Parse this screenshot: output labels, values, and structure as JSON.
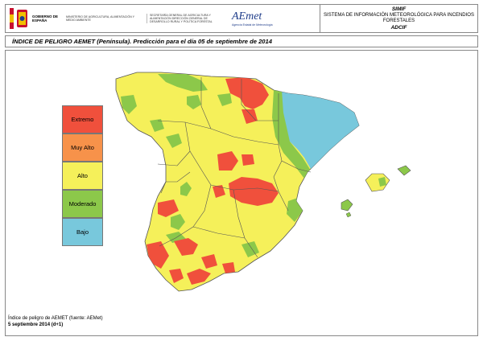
{
  "header": {
    "gobierno": "GOBIERNO DE ESPAÑA",
    "ministerio": "MINISTERIO DE AGRICULTURA, ALIMENTACIÓN Y MEDIO AMBIENTE",
    "secretaria": "SECRETARÍA GENERAL DE AGRICULTURA Y ALIMENTACIÓN DIRECCIÓN GENERAL DE DESARROLLO RURAL Y POLÍTICA FORESTAL",
    "aemet_logo": "AEmet",
    "aemet_sub": "Agencia Estatal de Meteorología",
    "system_code": "SIMIF",
    "system_name_1": "SISTEMA DE INFORMACIÓN METEOROLÓGICA PARA INCENDIOS",
    "system_name_2": "FORESTALES",
    "system_sub": "ADCIF"
  },
  "title": "ÍNDICE DE PELIGRO AEMET (Península). Predicción para el día 05 de septiembre de 2014",
  "legend": [
    {
      "label": "Extremo",
      "color": "#f0503c"
    },
    {
      "label": "Muy Alto",
      "color": "#f7924a"
    },
    {
      "label": "Alto",
      "color": "#f5f05a"
    },
    {
      "label": "Moderado",
      "color": "#8cc84a"
    },
    {
      "label": "Bajo",
      "color": "#78c8dc"
    }
  ],
  "footer": {
    "source": "Índice de peligro de AEMET (fuente: AEMet)",
    "date": "5 septiembre 2014 (d+1)"
  },
  "colors": {
    "sea": "#ffffff",
    "border": "#555555",
    "extremo": "#f0503c",
    "alto": "#f5f05a",
    "moderado": "#8cc84a",
    "bajo": "#78c8dc",
    "muy_alto": "#f7924a"
  }
}
